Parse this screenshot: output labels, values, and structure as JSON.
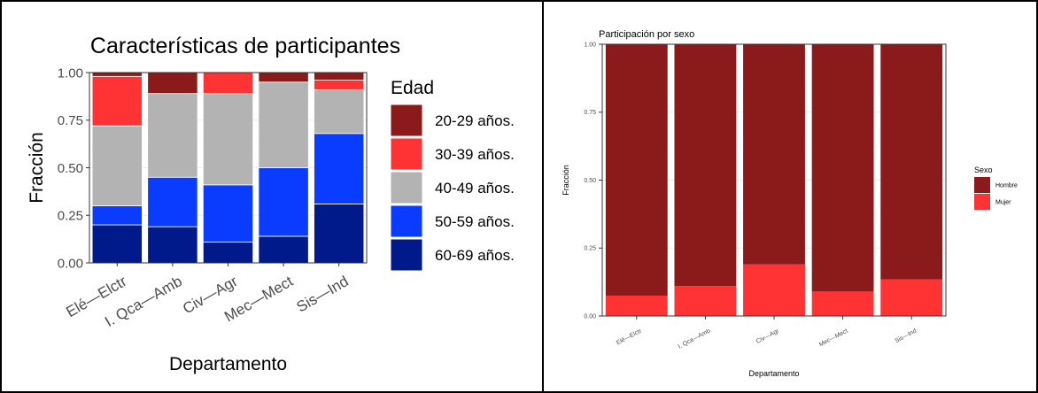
{
  "chart_data": [
    {
      "type": "bar",
      "stacked": true,
      "title": "Características de participantes",
      "xlabel": "Departamento",
      "ylabel": "Fracción",
      "ylim": [
        0,
        1
      ],
      "yticks": [
        "0.00",
        "0.25",
        "0.50",
        "0.75",
        "1.00"
      ],
      "categories": [
        "Elé—Elctr",
        "I. Qca—Amb",
        "Civ—Agr",
        "Mec—Mect",
        "Sis—Ind"
      ],
      "legend_title": "Edad",
      "legend_position": "right",
      "grid": true,
      "series": [
        {
          "name": "20-29 años.",
          "color": "#8b1a1a",
          "values": [
            0.02,
            0.11,
            0.0,
            0.05,
            0.04
          ]
        },
        {
          "name": "30-39 años.",
          "color": "#ff3333",
          "values": [
            0.26,
            0.0,
            0.11,
            0.0,
            0.05
          ]
        },
        {
          "name": "40-49 años.",
          "color": "#b3b3b3",
          "values": [
            0.42,
            0.44,
            0.48,
            0.45,
            0.23
          ]
        },
        {
          "name": "50-59 años.",
          "color": "#0a3cff",
          "values": [
            0.1,
            0.26,
            0.3,
            0.36,
            0.37
          ]
        },
        {
          "name": "60-69 años.",
          "color": "#001a8c",
          "values": [
            0.2,
            0.19,
            0.11,
            0.14,
            0.31
          ]
        }
      ]
    },
    {
      "type": "bar",
      "stacked": true,
      "title": "Participación por sexo",
      "xlabel": "Departamento",
      "ylabel": "Fracción",
      "ylim": [
        0,
        1
      ],
      "yticks": [
        "0.00",
        "0.25",
        "0.50",
        "0.75",
        "1.00"
      ],
      "categories": [
        "Elé—Elctr",
        "I. Qca—Amb",
        "Civ—Agr",
        "Mec—Mect",
        "Sis—Ind"
      ],
      "legend_title": "Sexo",
      "legend_position": "right",
      "grid": true,
      "series": [
        {
          "name": "Hombre",
          "color": "#8b1a1a",
          "values": [
            0.925,
            0.89,
            0.81,
            0.91,
            0.865
          ]
        },
        {
          "name": "Mujer",
          "color": "#ff3333",
          "values": [
            0.075,
            0.11,
            0.19,
            0.09,
            0.135
          ]
        }
      ]
    }
  ]
}
